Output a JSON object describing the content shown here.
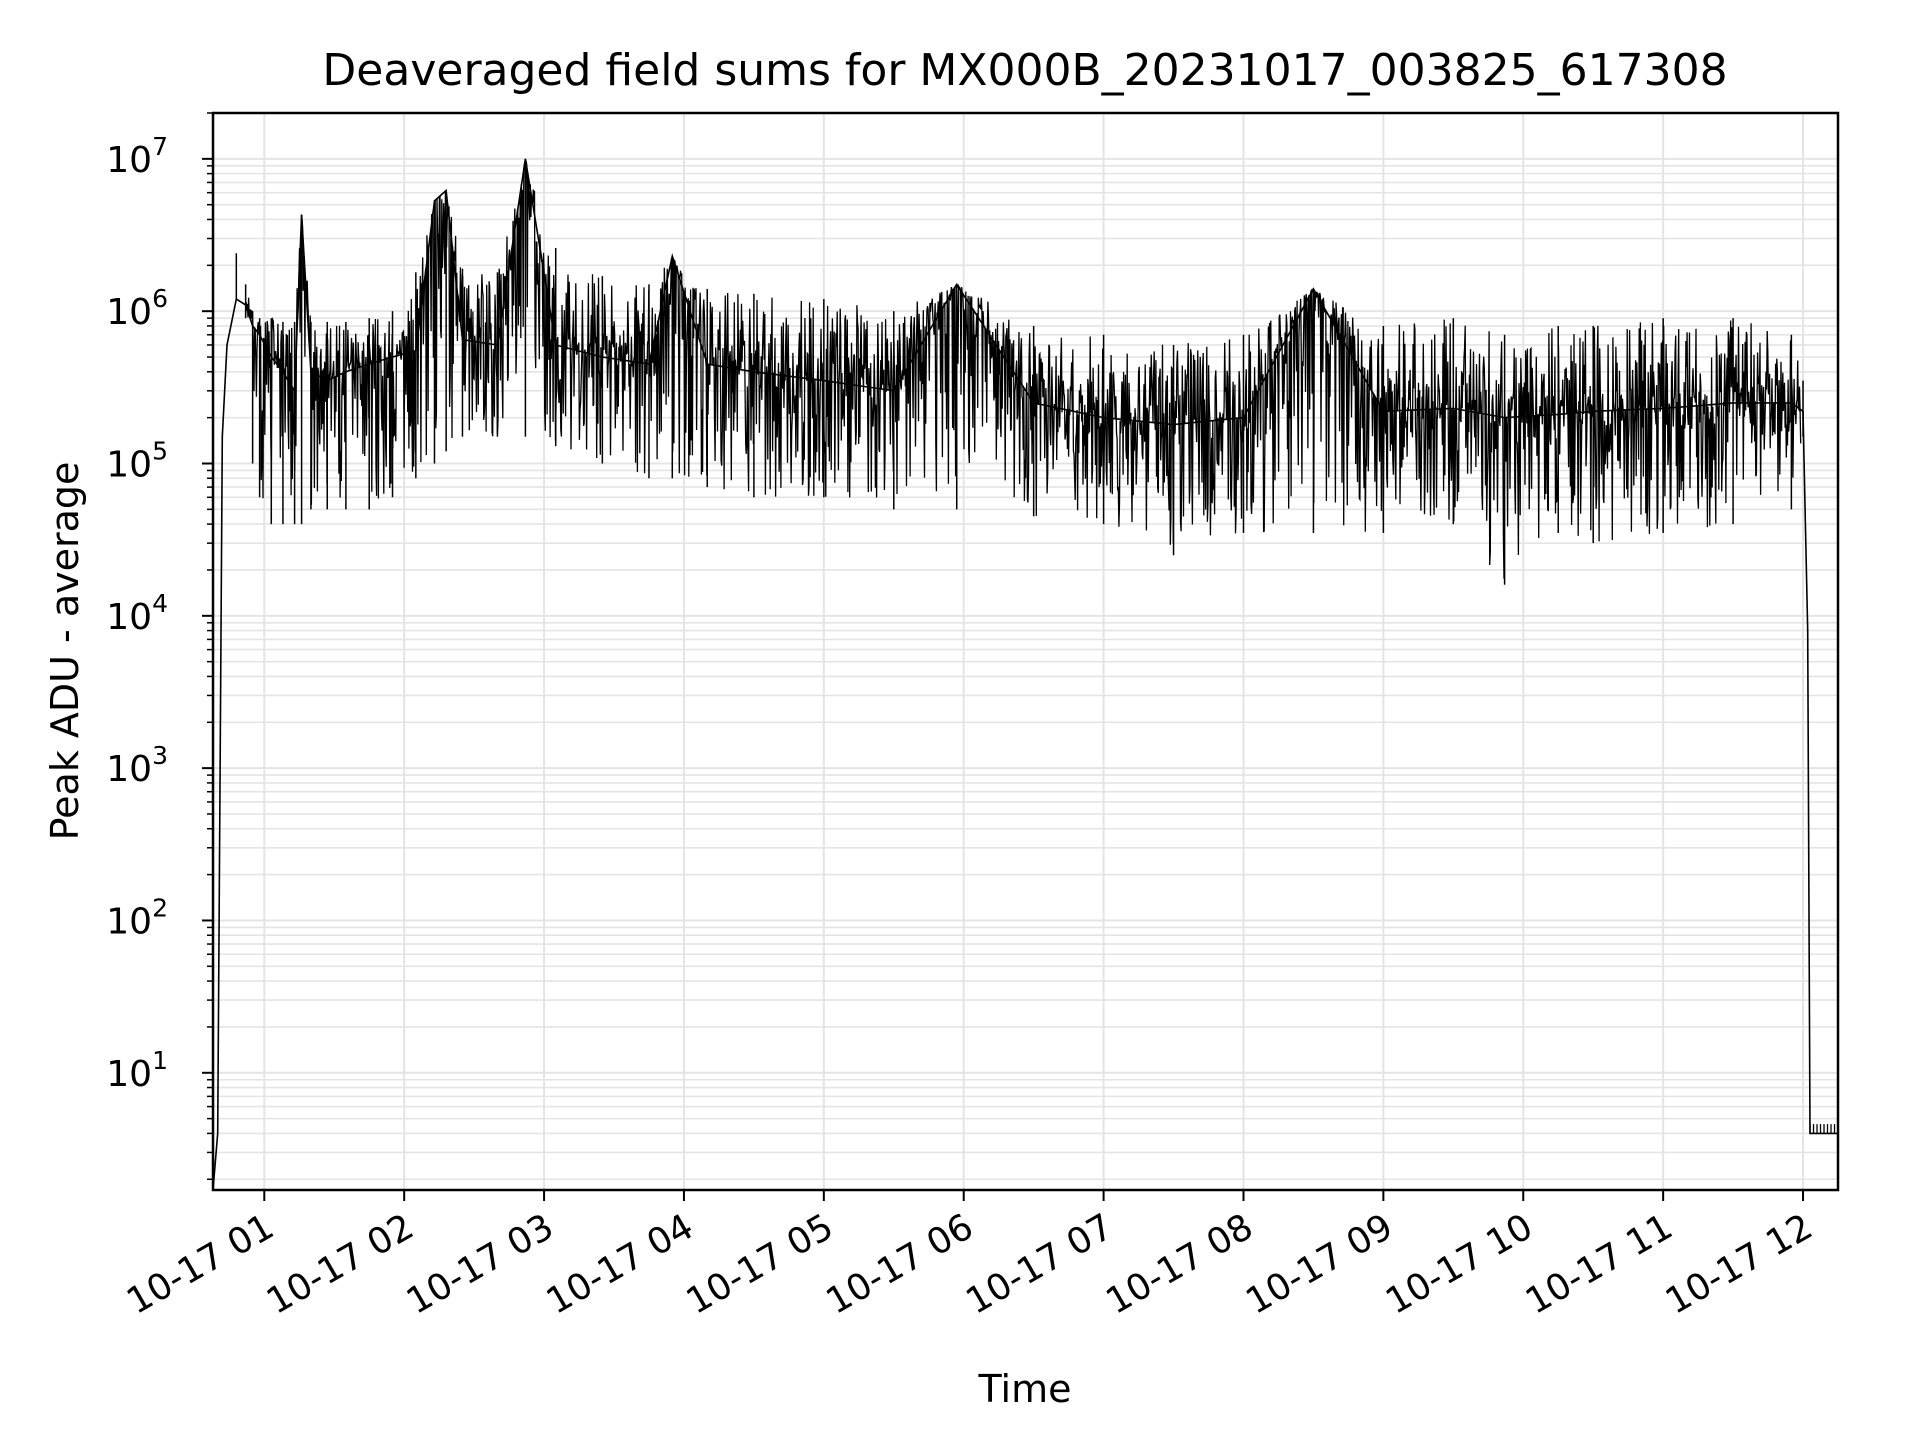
{
  "chart_data": {
    "type": "line",
    "title": "Deaveraged field sums for MX000B_20231017_003825_617308",
    "xlabel": "Time",
    "ylabel": "Peak ADU - average",
    "yscale": "log",
    "ylim": [
      1.7,
      20000000
    ],
    "xlim": [
      "2023-10-17 00:38",
      "2023-10-17 12:15"
    ],
    "grid": true,
    "line_color": "#000000",
    "grid_color": "#e4e4e4",
    "x_ticks": [
      "10-17 01",
      "10-17 02",
      "10-17 03",
      "10-17 04",
      "10-17 05",
      "10-17 06",
      "10-17 07",
      "10-17 08",
      "10-17 09",
      "10-17 10",
      "10-17 11",
      "10-17 12"
    ],
    "y_ticks": [
      {
        "base": "10",
        "exp": "1"
      },
      {
        "base": "10",
        "exp": "2"
      },
      {
        "base": "10",
        "exp": "3"
      },
      {
        "base": "10",
        "exp": "4"
      },
      {
        "base": "10",
        "exp": "5"
      },
      {
        "base": "10",
        "exp": "6"
      },
      {
        "base": "10",
        "exp": "7"
      }
    ],
    "series": [
      {
        "x": [
          "2023-10-17 00:38",
          "2023-10-17 00:40",
          "2023-10-17 00:42",
          "2023-10-17 00:44",
          "2023-10-17 00:48",
          "2023-10-17 00:52",
          "2023-10-17 00:55",
          "2023-10-17 00:58",
          "2023-10-17 01:03",
          "2023-10-17 01:08",
          "2023-10-17 01:13",
          "2023-10-17 01:16",
          "2023-10-17 01:20",
          "2023-10-17 01:27",
          "2023-10-17 01:35",
          "2023-10-17 01:45",
          "2023-10-17 01:55",
          "2023-10-17 02:05",
          "2023-10-17 02:13",
          "2023-10-17 02:18",
          "2023-10-17 02:25",
          "2023-10-17 02:40",
          "2023-10-17 02:52",
          "2023-10-17 03:05",
          "2023-10-17 03:25",
          "2023-10-17 03:45",
          "2023-10-17 03:55",
          "2023-10-17 04:10",
          "2023-10-17 04:30",
          "2023-10-17 05:00",
          "2023-10-17 05:30",
          "2023-10-17 05:57",
          "2023-10-17 06:30",
          "2023-10-17 07:00",
          "2023-10-17 07:30",
          "2023-10-17 08:00",
          "2023-10-17 08:30",
          "2023-10-17 09:00",
          "2023-10-17 09:30",
          "2023-10-17 09:52",
          "2023-10-17 10:15",
          "2023-10-17 10:30",
          "2023-10-17 11:00",
          "2023-10-17 11:30",
          "2023-10-17 11:55",
          "2023-10-17 12:00",
          "2023-10-17 12:01",
          "2023-10-17 12:02",
          "2023-10-17 12:03",
          "2023-10-17 12:15"
        ],
        "y": [
          1.7,
          4,
          150000,
          600000,
          1200000,
          1100000,
          800000,
          700000,
          500000,
          400000,
          300000,
          4300000,
          400000,
          350000,
          400000,
          450000,
          500000,
          550000,
          5300000,
          6200000,
          650000,
          600000,
          10000000,
          600000,
          500000,
          450000,
          2300000,
          450000,
          400000,
          350000,
          300000,
          1500000,
          250000,
          200000,
          180000,
          200000,
          1400000,
          220000,
          230000,
          200000,
          210000,
          220000,
          230000,
          250000,
          250000,
          220000,
          40000,
          8000,
          4,
          4
        ],
        "low": [
          1.7,
          4,
          150000,
          600000,
          1200000,
          900000,
          100000,
          60000,
          40000,
          40000,
          40000,
          40000,
          50000,
          50000,
          50000,
          50000,
          60000,
          80000,
          100000,
          120000,
          150000,
          150000,
          150000,
          130000,
          100000,
          80000,
          80000,
          70000,
          60000,
          60000,
          50000,
          50000,
          45000,
          40000,
          25000,
          35000,
          35000,
          35000,
          40000,
          16000,
          35000,
          30000,
          35000,
          40000,
          50000,
          150000,
          40000,
          8000,
          4,
          4
        ],
        "high": [
          1.7,
          4,
          150000,
          600000,
          2400000,
          1500000,
          1000000,
          900000,
          900000,
          850000,
          850000,
          4300000,
          850000,
          850000,
          850000,
          900000,
          1000000,
          1800000,
          5300000,
          6200000,
          1900000,
          1800000,
          10000000,
          2600000,
          1700000,
          1500000,
          2300000,
          1400000,
          1300000,
          1200000,
          1000000,
          1500000,
          800000,
          700000,
          600000,
          700000,
          1400000,
          800000,
          900000,
          700000,
          800000,
          800000,
          900000,
          900000,
          700000,
          350000,
          40000,
          8000,
          4,
          4
        ]
      }
    ]
  }
}
